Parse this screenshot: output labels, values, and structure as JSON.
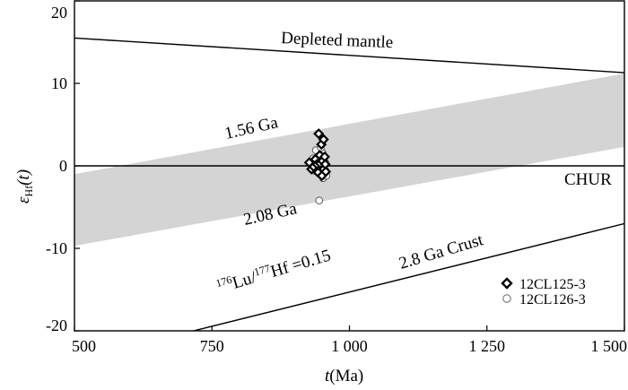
{
  "chart_data": {
    "type": "scatter",
    "xlabel": {
      "main": "t",
      "unit": "(Ma)"
    },
    "ylabel": {
      "main": "ε",
      "sub": "Hf",
      "arg": "(t)"
    },
    "xlim": [
      500,
      1500
    ],
    "ylim": [
      -20,
      20
    ],
    "x_ticks": [
      {
        "value": 500,
        "label": "500"
      },
      {
        "value": 750,
        "label": "750"
      },
      {
        "value": 1000,
        "label": "1 000"
      },
      {
        "value": 1250,
        "label": "1 250"
      },
      {
        "value": 1500,
        "label": "1 500"
      }
    ],
    "y_ticks": [
      {
        "value": 20,
        "label": "20"
      },
      {
        "value": 10,
        "label": "10"
      },
      {
        "value": 0,
        "label": "0"
      },
      {
        "value": -10,
        "label": "-10"
      },
      {
        "value": -20,
        "label": "-20"
      }
    ],
    "grid": false,
    "reference_lines": [
      {
        "name": "Depleted mantle",
        "points": [
          [
            500,
            15.5
          ],
          [
            1500,
            11.3
          ]
        ]
      },
      {
        "name": "CHUR",
        "points": [
          [
            500,
            0
          ],
          [
            1500,
            0
          ]
        ]
      },
      {
        "name": "2.8 Ga Crust",
        "points": [
          [
            500,
            -23.6
          ],
          [
            1500,
            -7.0
          ]
        ]
      }
    ],
    "band": {
      "fill": "#d4d4d4",
      "upper": {
        "label": "1.56 Ga",
        "points": [
          [
            500,
            -1.0
          ],
          [
            1500,
            11.2
          ]
        ]
      },
      "lower": {
        "label": "2.08 Ga",
        "points": [
          [
            500,
            -9.7
          ],
          [
            1500,
            2.3
          ]
        ]
      }
    },
    "band_labels": {
      "upper": "1.56 Ga",
      "lower": "2.08 Ga"
    },
    "crust_label": "2.8 Ga  Crust",
    "lu_hf_label": {
      "sup1": "176",
      "el1": "Lu/",
      "sup2": "177",
      "el2": "Hf =0.15"
    },
    "series": [
      {
        "name": "12CL125-3",
        "marker": "diamond",
        "points": [
          [
            927,
            0.4
          ],
          [
            931,
            -0.4
          ],
          [
            935,
            -0.1
          ],
          [
            938,
            0.8
          ],
          [
            941,
            0.2
          ],
          [
            943,
            -0.8
          ],
          [
            944,
            3.9
          ],
          [
            946,
            1.3
          ],
          [
            947,
            0.3
          ],
          [
            949,
            2.6
          ],
          [
            950,
            -1.2
          ],
          [
            951,
            0.6
          ],
          [
            953,
            3.2
          ],
          [
            953,
            -0.4
          ],
          [
            955,
            1.1
          ],
          [
            956,
            0.2
          ],
          [
            957,
            -0.7
          ]
        ]
      },
      {
        "name": "12CL126-3",
        "marker": "circle",
        "points": [
          [
            934,
            0.9
          ],
          [
            937,
            -0.6
          ],
          [
            939,
            1.9
          ],
          [
            942,
            0.1
          ],
          [
            945,
            -4.2
          ],
          [
            947,
            1.0
          ],
          [
            948,
            -0.2
          ],
          [
            951,
            1.6
          ],
          [
            952,
            -1.5
          ],
          [
            954,
            -0.9
          ],
          [
            956,
            0.4
          ],
          [
            958,
            -1.2
          ],
          [
            948,
            2.2
          ],
          [
            943,
            -0.3
          ]
        ]
      }
    ],
    "legend_position": "lower-right"
  }
}
